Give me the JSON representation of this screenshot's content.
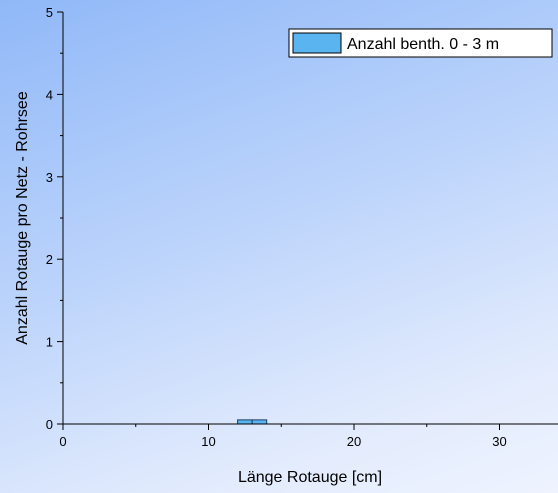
{
  "chart_data": {
    "type": "bar",
    "title": "",
    "xlabel": "Länge Rotauge [cm]",
    "ylabel": "Anzahl Rotauge pro Netz - Rohrsee",
    "xlim": [
      0,
      34
    ],
    "ylim": [
      0,
      5
    ],
    "xticks": [
      0,
      10,
      20,
      30
    ],
    "yticks": [
      0,
      1,
      2,
      3,
      4,
      5
    ],
    "xticks_text": [
      "0",
      "10",
      "20",
      "30"
    ],
    "yticks_text": [
      "0",
      "1",
      "2",
      "3",
      "4",
      "5"
    ],
    "bin_width": 1,
    "grid": false,
    "legend_position": "top-right",
    "series": [
      {
        "name": "Anzahl benth. 0 - 3 m",
        "color": "#5ab4f0",
        "bins": [
          12.5,
          13.5
        ],
        "values": [
          0.05,
          0.05
        ]
      }
    ]
  }
}
